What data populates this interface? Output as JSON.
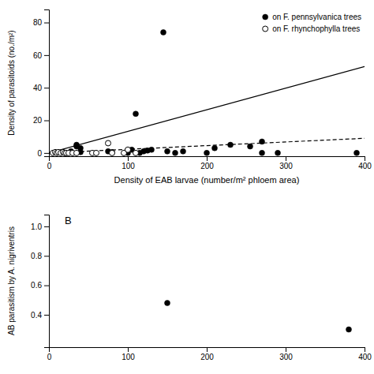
{
  "chart_data": [
    {
      "type": "scatter",
      "x_label": "Density of EAB larvae (number/m² phloem area)",
      "y_label": "Density of parasitoids (no./m²)",
      "series": [
        {
          "name": "on F. pennsylvanica trees",
          "type": "scatter",
          "marker": "filled",
          "color": "black",
          "x": [
            28,
            35,
            35,
            40,
            40,
            75,
            80,
            100,
            105,
            110,
            115,
            120,
            125,
            130,
            145,
            150,
            160,
            170,
            200,
            210,
            230,
            255,
            270,
            270,
            290,
            390
          ],
          "values": [
            1,
            5,
            4,
            0.5,
            3,
            1,
            0.5,
            0,
            2,
            24,
            0,
            1,
            1.5,
            2,
            74,
            1,
            0,
            1,
            0,
            3,
            5,
            4,
            7,
            0,
            0,
            0
          ]
        },
        {
          "name": "on F. rhynchophylla trees",
          "type": "scatter",
          "marker": "open",
          "color": "black",
          "x": [
            5,
            8,
            10,
            12,
            15,
            18,
            20,
            22,
            25,
            30,
            35,
            55,
            60,
            75,
            80,
            95,
            100,
            110
          ],
          "values": [
            0,
            0.5,
            0,
            0.5,
            0,
            0.5,
            0,
            0,
            0,
            0,
            0,
            0,
            0,
            6,
            0,
            0,
            2,
            0
          ]
        },
        {
          "type": "line",
          "line_style": "solid",
          "color": "black",
          "x": [
            0,
            400
          ],
          "values": [
            0,
            53
          ]
        },
        {
          "type": "line",
          "line_style": "dashed",
          "color": "black",
          "x": [
            0,
            400
          ],
          "values": [
            0,
            9
          ]
        }
      ],
      "xlim": [
        0,
        400
      ],
      "ylim": [
        -2,
        88
      ],
      "xticks": [
        0,
        100,
        200,
        300,
        400
      ],
      "yticks": [
        0,
        20,
        40,
        60,
        80
      ],
      "legend": "upper right"
    },
    {
      "type": "scatter",
      "y_label": "AB parasitism by A. nigriventris",
      "annotations": [
        "B"
      ],
      "series": [
        {
          "type": "scatter",
          "marker": "filled",
          "color": "black",
          "x": [
            150,
            380
          ],
          "values": [
            0.48,
            0.3
          ]
        }
      ],
      "xlim": [
        0,
        400
      ],
      "ylim": [
        0.18,
        1.08
      ],
      "xticks": [
        0,
        100,
        200,
        300,
        400
      ],
      "yticks": [
        0.4,
        0.6,
        0.8,
        {
          "value": 1.0,
          "label": "1.0"
        }
      ]
    }
  ]
}
